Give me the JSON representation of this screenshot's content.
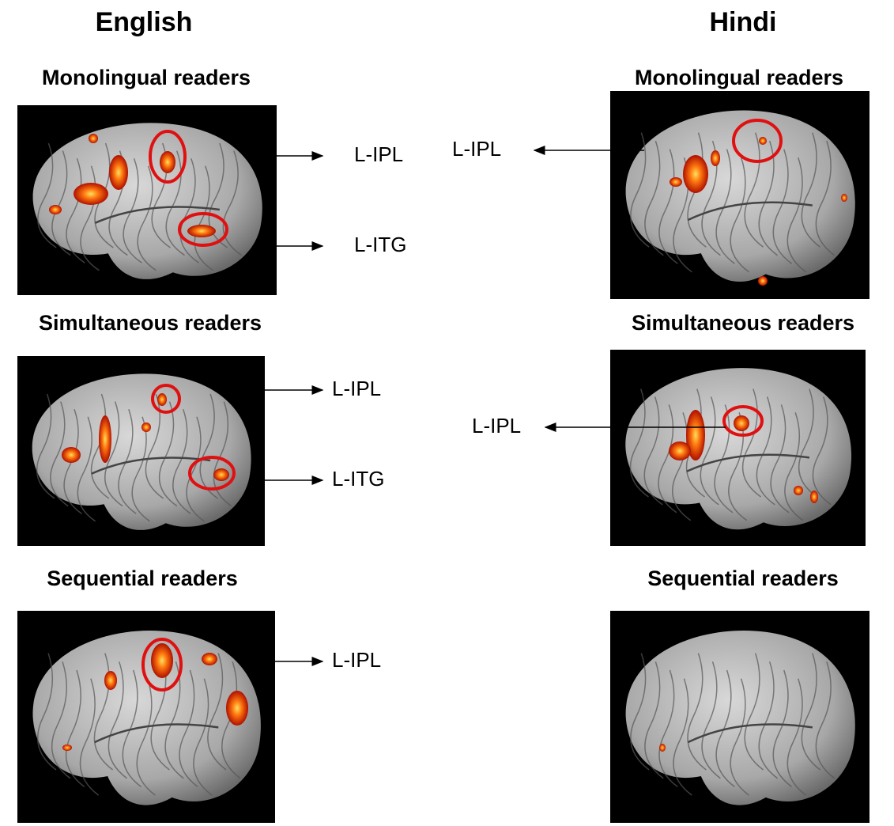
{
  "columns": [
    {
      "title": "English",
      "panels": [
        {
          "group": "Monolingual readers",
          "regions": [
            "L-IPL",
            "L-ITG"
          ]
        },
        {
          "group": "Simultaneous readers",
          "regions": [
            "L-IPL",
            "L-ITG"
          ]
        },
        {
          "group": "Sequential readers",
          "regions": [
            "L-IPL"
          ]
        }
      ]
    },
    {
      "title": "Hindi",
      "panels": [
        {
          "group": "Monolingual readers",
          "regions": [
            "L-IPL"
          ]
        },
        {
          "group": "Simultaneous readers",
          "regions": [
            "L-IPL"
          ]
        },
        {
          "group": "Sequential readers",
          "regions": []
        }
      ]
    }
  ]
}
